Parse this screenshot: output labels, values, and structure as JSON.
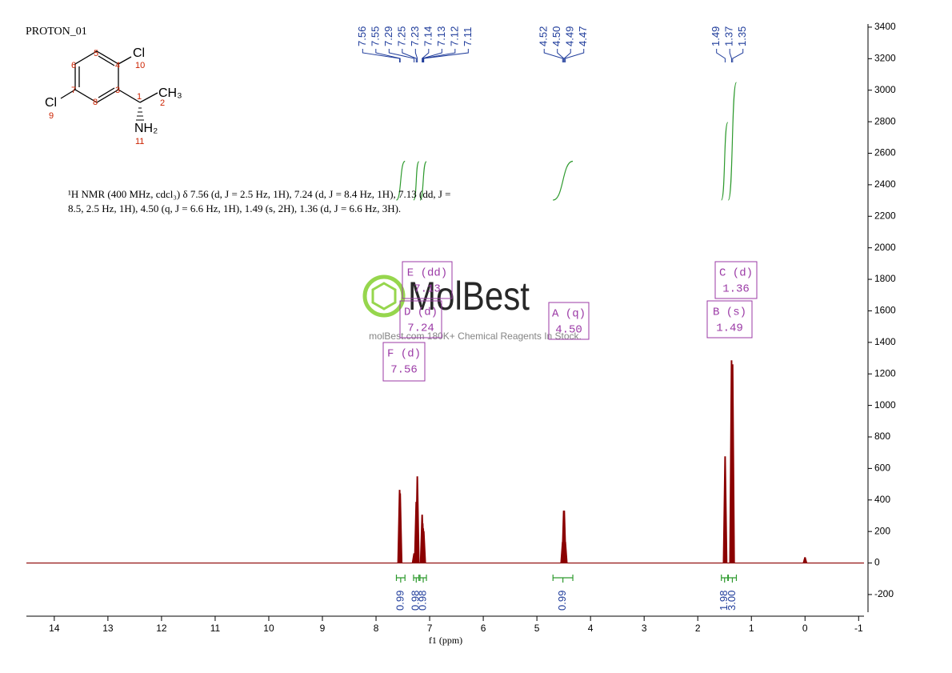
{
  "title": "PROTON_01",
  "watermark": {
    "brand": "MolBest",
    "tagline": "molBest.com 180K+ Chemical Reagents In Stock."
  },
  "molecule": {
    "symbols": [
      "Cl",
      "CH₃",
      "Cl",
      "NH₂"
    ],
    "locants": [
      "10",
      "2",
      "9",
      "11",
      "1",
      "3",
      "4",
      "5",
      "6",
      "7",
      "8"
    ]
  },
  "description": [
    "¹H NMR (400 MHz, cdcl₃) δ 7.56 (d, J = 2.5 Hz, 1H), 7.24 (d, J = 8.4 Hz, 1H), 7.13 (dd, J =",
    "8.5, 2.5 Hz, 1H), 4.50 (q, J = 6.6 Hz, 1H), 1.49 (s, 2H), 1.36 (d, J = 6.6 Hz, 3H)."
  ],
  "chart_data": {
    "type": "nmr",
    "x_label": "f1 (ppm)",
    "xlim": [
      14.52,
      -1.1
    ],
    "xticks": [
      14,
      13,
      12,
      11,
      10,
      9,
      8,
      7,
      6,
      5,
      4,
      3,
      2,
      1,
      0,
      -1
    ],
    "ylim": [
      -312,
      3420
    ],
    "yticks": [
      -200,
      0,
      200,
      400,
      600,
      800,
      1000,
      1200,
      1400,
      1600,
      1800,
      2000,
      2200,
      2400,
      2600,
      2800,
      3000,
      3200,
      3400
    ],
    "color": "#8b0000",
    "peaks": {
      "ppm": [
        7.56,
        7.55,
        7.29,
        7.25,
        7.23,
        7.14,
        7.13,
        7.12,
        7.11,
        4.52,
        4.5,
        4.49,
        4.47,
        1.49,
        1.37,
        1.35,
        0
      ],
      "intensity": [
        462,
        440,
        60,
        386,
        548,
        305,
        250,
        218,
        200,
        132,
        330,
        330,
        132,
        675,
        1284,
        1259,
        35
      ]
    },
    "peak_labels": [
      7.56,
      7.55,
      7.29,
      7.25,
      7.23,
      7.14,
      7.13,
      7.12,
      7.11,
      4.52,
      {
        "value": 4.5,
        "label": "4.50"
      },
      4.49,
      4.47,
      1.49,
      1.37,
      1.35
    ],
    "integrals": {
      "color": "#2e9a2e",
      "ranges": [
        [
          7.62,
          7.46
        ],
        [
          7.3,
          7.2
        ],
        [
          7.18,
          7.06
        ],
        [
          4.7,
          4.33
        ],
        [
          1.56,
          1.44
        ],
        [
          1.43,
          1.28
        ]
      ],
      "values": [
        0.99,
        0.98,
        0.98,
        0.99,
        1.98,
        3
      ],
      "value_labels": [
        "0.99",
        "0.98",
        "0.98",
        "0.99",
        "1.98",
        "3.00"
      ]
    },
    "multiplets": [
      {
        "label": "E (dd)",
        "shift": 7.13
      },
      {
        "label": "D (d)",
        "shift": 7.24
      },
      {
        "label": "F (d)",
        "shift": 7.56
      },
      {
        "label": "A (q)",
        "shift": {
          "value": 4.5,
          "label": "4.50"
        }
      },
      {
        "label": "C (d)",
        "shift": 1.36
      },
      {
        "label": "B (s)",
        "shift": 1.49
      }
    ]
  }
}
